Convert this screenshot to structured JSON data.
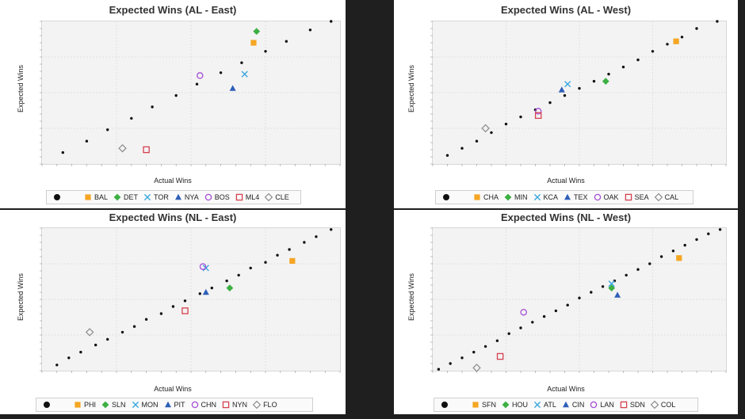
{
  "colors": {
    "orange": "#f5a623",
    "green": "#3cb043",
    "lightblue": "#3aa7e0",
    "blue": "#2e5fb8",
    "purple": "#a64dd6",
    "red": "#d6404f",
    "gray": "#8a8a8a",
    "black": "#111111"
  },
  "chart_data": [
    {
      "type": "scatter",
      "title": "Expected Wins (AL - East)",
      "xlabel": "Actual Wins",
      "ylabel": "Expected Wins",
      "xlim": [
        0,
        1
      ],
      "ylim": [
        0,
        1
      ],
      "grid": true,
      "legend_position": "bottom",
      "series": [
        {
          "name": "",
          "marker": "dot",
          "color": "black",
          "points": [
            [
              0.07,
              0.08
            ],
            [
              0.15,
              0.16
            ],
            [
              0.22,
              0.24
            ],
            [
              0.3,
              0.32
            ],
            [
              0.37,
              0.4
            ],
            [
              0.45,
              0.48
            ],
            [
              0.52,
              0.56
            ],
            [
              0.6,
              0.64
            ],
            [
              0.67,
              0.71
            ],
            [
              0.75,
              0.79
            ],
            [
              0.82,
              0.86
            ],
            [
              0.9,
              0.94
            ],
            [
              0.97,
              1.0
            ]
          ]
        },
        {
          "name": "BAL",
          "marker": "square",
          "color": "orange",
          "points": [
            [
              0.71,
              0.85
            ]
          ]
        },
        {
          "name": "DET",
          "marker": "diamond",
          "color": "green",
          "points": [
            [
              0.72,
              0.93
            ]
          ]
        },
        {
          "name": "TOR",
          "marker": "x",
          "color": "lightblue",
          "points": [
            [
              0.68,
              0.63
            ]
          ]
        },
        {
          "name": "NYA",
          "marker": "triangle",
          "color": "blue",
          "points": [
            [
              0.64,
              0.53
            ]
          ]
        },
        {
          "name": "BOS",
          "marker": "circle",
          "color": "purple",
          "points": [
            [
              0.53,
              0.62
            ]
          ]
        },
        {
          "name": "ML4",
          "marker": "square-open",
          "color": "red",
          "points": [
            [
              0.35,
              0.1
            ]
          ]
        },
        {
          "name": "CLE",
          "marker": "diamond-open",
          "color": "gray",
          "points": [
            [
              0.27,
              0.11
            ]
          ]
        }
      ]
    },
    {
      "type": "scatter",
      "title": "Expected Wins (AL - West)",
      "xlabel": "Actual Wins",
      "ylabel": "Expected Wins",
      "xlim": [
        0,
        1
      ],
      "ylim": [
        0,
        1
      ],
      "grid": true,
      "legend_position": "bottom",
      "series": [
        {
          "name": "",
          "marker": "dot",
          "color": "black",
          "points": [
            [
              0.05,
              0.06
            ],
            [
              0.1,
              0.11
            ],
            [
              0.15,
              0.16
            ],
            [
              0.2,
              0.22
            ],
            [
              0.25,
              0.28
            ],
            [
              0.3,
              0.33
            ],
            [
              0.35,
              0.38
            ],
            [
              0.4,
              0.43
            ],
            [
              0.45,
              0.48
            ],
            [
              0.5,
              0.53
            ],
            [
              0.55,
              0.58
            ],
            [
              0.6,
              0.63
            ],
            [
              0.65,
              0.68
            ],
            [
              0.7,
              0.73
            ],
            [
              0.75,
              0.79
            ],
            [
              0.8,
              0.84
            ],
            [
              0.85,
              0.89
            ],
            [
              0.9,
              0.95
            ],
            [
              0.97,
              1.0
            ]
          ]
        },
        {
          "name": "CHA",
          "marker": "square",
          "color": "orange",
          "points": [
            [
              0.83,
              0.86
            ]
          ]
        },
        {
          "name": "MIN",
          "marker": "diamond",
          "color": "green",
          "points": [
            [
              0.59,
              0.58
            ]
          ]
        },
        {
          "name": "KCA",
          "marker": "x",
          "color": "lightblue",
          "points": [
            [
              0.46,
              0.56
            ]
          ]
        },
        {
          "name": "TEX",
          "marker": "triangle",
          "color": "blue",
          "points": [
            [
              0.44,
              0.52
            ]
          ]
        },
        {
          "name": "OAK",
          "marker": "circle",
          "color": "purple",
          "points": [
            [
              0.36,
              0.37
            ]
          ]
        },
        {
          "name": "SEA",
          "marker": "square-open",
          "color": "red",
          "points": [
            [
              0.36,
              0.34
            ]
          ]
        },
        {
          "name": "CAL",
          "marker": "diamond-open",
          "color": "gray",
          "points": [
            [
              0.18,
              0.25
            ]
          ]
        }
      ]
    },
    {
      "type": "scatter",
      "title": "Expected Wins (NL - East)",
      "xlabel": "Actual Wins",
      "ylabel": "Expected Wins",
      "xlim": [
        0,
        1
      ],
      "ylim": [
        0,
        1
      ],
      "grid": true,
      "legend_position": "bottom",
      "series": [
        {
          "name": "",
          "marker": "dot",
          "color": "black",
          "points": [
            [
              0.05,
              0.04
            ],
            [
              0.09,
              0.09
            ],
            [
              0.13,
              0.13
            ],
            [
              0.18,
              0.18
            ],
            [
              0.22,
              0.22
            ],
            [
              0.27,
              0.27
            ],
            [
              0.31,
              0.31
            ],
            [
              0.35,
              0.36
            ],
            [
              0.4,
              0.4
            ],
            [
              0.44,
              0.45
            ],
            [
              0.48,
              0.49
            ],
            [
              0.53,
              0.54
            ],
            [
              0.57,
              0.58
            ],
            [
              0.62,
              0.63
            ],
            [
              0.66,
              0.67
            ],
            [
              0.7,
              0.72
            ],
            [
              0.75,
              0.76
            ],
            [
              0.79,
              0.81
            ],
            [
              0.83,
              0.85
            ],
            [
              0.88,
              0.9
            ],
            [
              0.92,
              0.94
            ],
            [
              0.97,
              0.99
            ]
          ]
        },
        {
          "name": "PHI",
          "marker": "square",
          "color": "orange",
          "points": [
            [
              0.84,
              0.77
            ]
          ]
        },
        {
          "name": "SLN",
          "marker": "diamond",
          "color": "green",
          "points": [
            [
              0.63,
              0.58
            ]
          ]
        },
        {
          "name": "MON",
          "marker": "x",
          "color": "lightblue",
          "points": [
            [
              0.55,
              0.72
            ]
          ]
        },
        {
          "name": "PIT",
          "marker": "triangle",
          "color": "blue",
          "points": [
            [
              0.55,
              0.55
            ]
          ]
        },
        {
          "name": "CHN",
          "marker": "circle",
          "color": "purple",
          "points": [
            [
              0.54,
              0.73
            ]
          ]
        },
        {
          "name": "NYN",
          "marker": "square-open",
          "color": "red",
          "points": [
            [
              0.48,
              0.42
            ]
          ]
        },
        {
          "name": "FLO",
          "marker": "diamond-open",
          "color": "gray",
          "points": [
            [
              0.16,
              0.27
            ]
          ]
        }
      ]
    },
    {
      "type": "scatter",
      "title": "Expected Wins (NL - West)",
      "xlabel": "Actual Wins",
      "ylabel": "Expected Wins",
      "xlim": [
        0,
        1
      ],
      "ylim": [
        0,
        1
      ],
      "grid": true,
      "legend_position": "bottom",
      "series": [
        {
          "name": "",
          "marker": "dot",
          "color": "black",
          "points": [
            [
              0.02,
              0.01
            ],
            [
              0.06,
              0.05
            ],
            [
              0.1,
              0.09
            ],
            [
              0.14,
              0.13
            ],
            [
              0.18,
              0.17
            ],
            [
              0.22,
              0.21
            ],
            [
              0.26,
              0.26
            ],
            [
              0.3,
              0.3
            ],
            [
              0.34,
              0.34
            ],
            [
              0.38,
              0.38
            ],
            [
              0.42,
              0.42
            ],
            [
              0.46,
              0.46
            ],
            [
              0.5,
              0.51
            ],
            [
              0.54,
              0.55
            ],
            [
              0.58,
              0.59
            ],
            [
              0.62,
              0.63
            ],
            [
              0.66,
              0.67
            ],
            [
              0.7,
              0.71
            ],
            [
              0.74,
              0.75
            ],
            [
              0.78,
              0.8
            ],
            [
              0.82,
              0.84
            ],
            [
              0.86,
              0.88
            ],
            [
              0.9,
              0.92
            ],
            [
              0.94,
              0.96
            ],
            [
              0.98,
              0.99
            ]
          ]
        },
        {
          "name": "SFN",
          "marker": "square",
          "color": "orange",
          "points": [
            [
              0.84,
              0.79
            ]
          ]
        },
        {
          "name": "HOU",
          "marker": "diamond",
          "color": "green",
          "points": [
            [
              0.61,
              0.58
            ]
          ]
        },
        {
          "name": "ATL",
          "marker": "x",
          "color": "lightblue",
          "points": [
            [
              0.61,
              0.61
            ]
          ]
        },
        {
          "name": "CIN",
          "marker": "triangle",
          "color": "blue",
          "points": [
            [
              0.63,
              0.53
            ]
          ]
        },
        {
          "name": "LAN",
          "marker": "circle",
          "color": "purple",
          "points": [
            [
              0.31,
              0.41
            ]
          ]
        },
        {
          "name": "SDN",
          "marker": "square-open",
          "color": "red",
          "points": [
            [
              0.23,
              0.1
            ]
          ]
        },
        {
          "name": "COL",
          "marker": "diamond-open",
          "color": "gray",
          "points": [
            [
              0.15,
              0.02
            ]
          ]
        }
      ]
    }
  ]
}
